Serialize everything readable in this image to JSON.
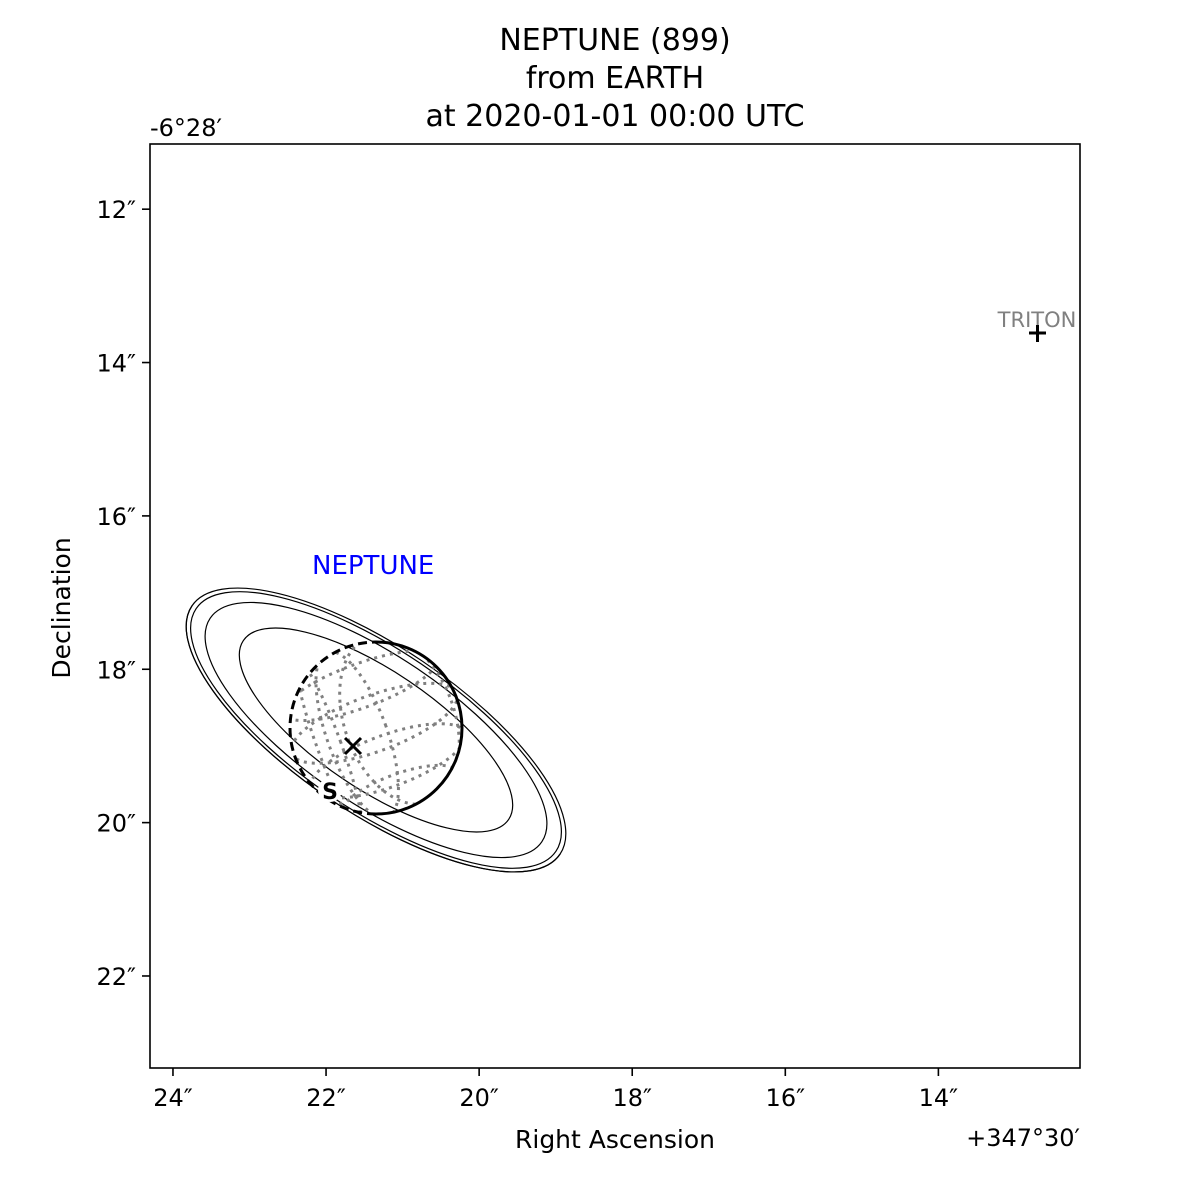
{
  "title": {
    "line1": "NEPTUNE (899)",
    "line2": "from EARTH",
    "line3": "at 2020-01-01 00:00 UTC"
  },
  "axes": {
    "xlabel": "Right Ascension",
    "ylabel": "Declination",
    "x_offset_label": "+347°30′",
    "y_offset_label": "-6°28′",
    "x_ticks": [
      "24″",
      "22″",
      "20″",
      "18″",
      "16″",
      "14″"
    ],
    "y_ticks": [
      "12″",
      "14″",
      "16″",
      "18″",
      "20″",
      "22″"
    ],
    "x_range_arcsec": [
      24.3,
      12.15
    ],
    "y_range_arcsec": [
      11.15,
      23.2
    ]
  },
  "bodies": {
    "neptune": {
      "label": "NEPTUNE",
      "label_color": "#0000ff",
      "ra_arcsec": 21.65,
      "dec_arcsec": 19.0
    },
    "triton": {
      "label": "TRITON",
      "label_color": "#808080",
      "ra_arcsec": 12.65,
      "dec_arcsec": 13.6
    },
    "south_pole": {
      "label": "S"
    }
  },
  "colors": {
    "grid": "#808080",
    "rings": "#000000",
    "limb": "#000000"
  }
}
